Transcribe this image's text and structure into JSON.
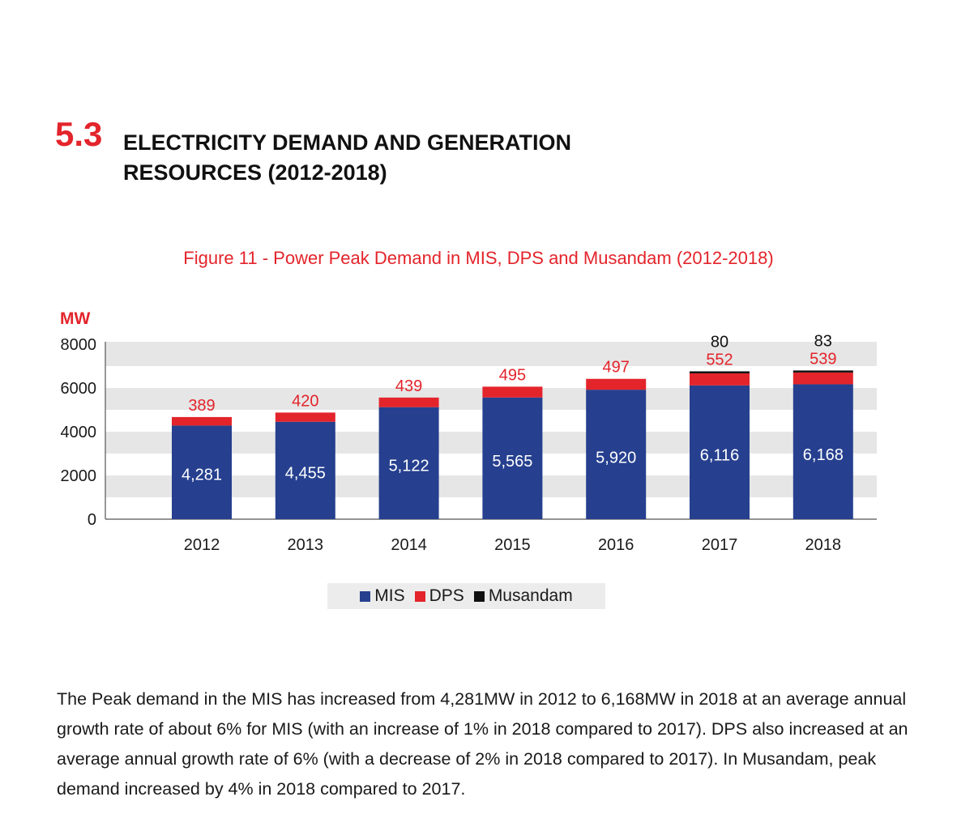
{
  "section": {
    "number": "5.3",
    "title_line1": "ELECTRICITY DEMAND AND GENERATION",
    "title_line2": "RESOURCES (2012-2018)"
  },
  "figure": {
    "caption": "Figure 11 - Power Peak Demand in MIS, DPS and Musandam (2012-2018)"
  },
  "colors": {
    "MIS": "#26408f",
    "DPS": "#e3242b",
    "Musandam": "#111111",
    "accent": "#e3242b",
    "band": "#e6e6e6"
  },
  "chart_data": {
    "type": "bar",
    "stacked": true,
    "title": "Figure 11 - Power Peak Demand in MIS, DPS and Musandam (2012-2018)",
    "ylabel": "MW",
    "xlabel": "",
    "ylim": [
      0,
      8000
    ],
    "yticks": [
      "0",
      "2000",
      "4000",
      "6000",
      "8000"
    ],
    "categories": [
      "2012",
      "2013",
      "2014",
      "2015",
      "2016",
      "2017",
      "2018"
    ],
    "series": [
      {
        "name": "MIS",
        "values": [
          4281,
          4455,
          5122,
          5565,
          5920,
          6116,
          6168
        ],
        "labels": [
          "4,281",
          "4,455",
          "5,122",
          "5,565",
          "5,920",
          "6,116",
          "6,168"
        ]
      },
      {
        "name": "DPS",
        "values": [
          389,
          420,
          439,
          495,
          497,
          552,
          539
        ],
        "labels": [
          "389",
          "420",
          "439",
          "495",
          "497",
          "552",
          "539"
        ]
      },
      {
        "name": "Musandam",
        "values": [
          null,
          null,
          null,
          null,
          null,
          80,
          83
        ],
        "labels": [
          "",
          "",
          "",
          "",
          "",
          "80",
          "83"
        ]
      }
    ],
    "grid": "alternating horizontal bands",
    "legend": "bottom-center"
  },
  "legend": {
    "items": [
      {
        "label": "MIS"
      },
      {
        "label": "DPS"
      },
      {
        "label": "Musandam"
      }
    ]
  },
  "body": {
    "paragraph": "The Peak demand in the MIS has increased from 4,281MW in 2012 to 6,168MW in 2018 at an average annual growth rate of about 6% for MIS (with an increase of 1% in 2018 compared to 2017). DPS also increased at an average annual growth rate of 6% (with a decrease of 2% in 2018 compared to 2017). In Musandam, peak demand increased by 4% in 2018 compared to 2017."
  }
}
